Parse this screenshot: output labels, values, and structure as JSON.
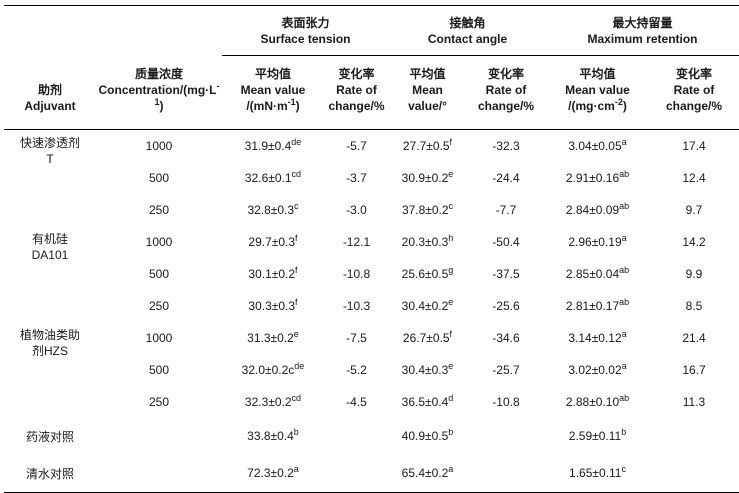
{
  "page": {
    "background_color": "#ffffff",
    "text_color": "#1a1a1a",
    "rule_color": "#000000"
  },
  "table": {
    "corner_headers": [
      {
        "id": "adjuvant",
        "lines": [
          [
            "助剂"
          ],
          [
            "Adjuvant"
          ]
        ]
      },
      {
        "id": "concentration",
        "lines": [
          [
            "质量浓度"
          ],
          [
            "Concentration/(mg·L",
            {
              "sup": "-1"
            },
            ")"
          ]
        ]
      }
    ],
    "group_headers": [
      {
        "id": "surface-tension",
        "lines": [
          [
            "表面张力"
          ],
          [
            "Surface tension"
          ]
        ]
      },
      {
        "id": "contact-angle",
        "lines": [
          [
            "接触角"
          ],
          [
            "Contact angle"
          ]
        ]
      },
      {
        "id": "max-retention",
        "lines": [
          [
            "最大持留量"
          ],
          [
            "Maximum retention"
          ]
        ]
      }
    ],
    "sub_headers": [
      {
        "id": "st-mean",
        "lines": [
          [
            "平均值"
          ],
          [
            "Mean value"
          ],
          [
            "/(mN·m",
            {
              "sup": "-1"
            },
            ")"
          ]
        ]
      },
      {
        "id": "st-rate",
        "lines": [
          [
            "变化率"
          ],
          [
            "Rate of"
          ],
          [
            "change/%"
          ]
        ]
      },
      {
        "id": "ca-mean",
        "lines": [
          [
            "平均值"
          ],
          [
            "Mean"
          ],
          [
            "value/°"
          ]
        ]
      },
      {
        "id": "ca-rate",
        "lines": [
          [
            "变化率"
          ],
          [
            "Rate of"
          ],
          [
            "change/%"
          ]
        ]
      },
      {
        "id": "ret-mean",
        "lines": [
          [
            "平均值"
          ],
          [
            "Mean value"
          ],
          [
            "/(mg·cm",
            {
              "sup": "-2"
            },
            ")"
          ]
        ]
      },
      {
        "id": "ret-rate",
        "lines": [
          [
            "变化率"
          ],
          [
            "Rate of"
          ],
          [
            "change/%"
          ]
        ]
      }
    ],
    "rows": [
      {
        "adjuvant": {
          "lines": [
            "快速渗透剂",
            "T"
          ],
          "rowspan": 3
        },
        "concentration": "1000",
        "values": [
          {
            "v": "31.9±0.4",
            "sup": "de"
          },
          {
            "v": "-5.7"
          },
          {
            "v": "27.7±0.5",
            "sup": "f"
          },
          {
            "v": "-32.3"
          },
          {
            "v": "3.04±0.05",
            "sup": "a"
          },
          {
            "v": "17.4"
          }
        ]
      },
      {
        "concentration": "500",
        "values": [
          {
            "v": "32.6±0.1",
            "sup": "cd"
          },
          {
            "v": "-3.7"
          },
          {
            "v": "30.9±0.2",
            "sup": "e"
          },
          {
            "v": "-24.4"
          },
          {
            "v": "2.91±0.16",
            "sup": "ab"
          },
          {
            "v": "12.4"
          }
        ]
      },
      {
        "concentration": "250",
        "values": [
          {
            "v": "32.8±0.3",
            "sup": "c"
          },
          {
            "v": "-3.0"
          },
          {
            "v": "37.8±0.2",
            "sup": "c"
          },
          {
            "v": "-7.7"
          },
          {
            "v": "2.84±0.09",
            "sup": "ab"
          },
          {
            "v": "9.7"
          }
        ]
      },
      {
        "adjuvant": {
          "lines": [
            "有机硅",
            "DA101"
          ],
          "rowspan": 3
        },
        "concentration": "1000",
        "values": [
          {
            "v": "29.7±0.3",
            "sup": "f"
          },
          {
            "v": "-12.1"
          },
          {
            "v": "20.3±0.3",
            "sup": "h"
          },
          {
            "v": "-50.4"
          },
          {
            "v": "2.96±0.19",
            "sup": "a"
          },
          {
            "v": "14.2"
          }
        ]
      },
      {
        "concentration": "500",
        "values": [
          {
            "v": "30.1±0.2",
            "sup": "f"
          },
          {
            "v": "-10.8"
          },
          {
            "v": "25.6±0.5",
            "sup": "g"
          },
          {
            "v": "-37.5"
          },
          {
            "v": "2.85±0.04",
            "sup": "ab"
          },
          {
            "v": "9.9"
          }
        ]
      },
      {
        "concentration": "250",
        "values": [
          {
            "v": "30.3±0.3",
            "sup": "f"
          },
          {
            "v": "-10.3"
          },
          {
            "v": "30.4±0.2",
            "sup": "e"
          },
          {
            "v": "-25.6"
          },
          {
            "v": "2.81±0.17",
            "sup": "ab"
          },
          {
            "v": "8.5"
          }
        ]
      },
      {
        "adjuvant": {
          "lines": [
            "植物油类助",
            "剂HZS"
          ],
          "rowspan": 3
        },
        "concentration": "1000",
        "values": [
          {
            "v": "31.3±0.2",
            "sup": "e"
          },
          {
            "v": "-7.5"
          },
          {
            "v": "26.7±0.5",
            "sup": "f"
          },
          {
            "v": "-34.6"
          },
          {
            "v": "3.14±0.12",
            "sup": "a"
          },
          {
            "v": "21.4"
          }
        ]
      },
      {
        "concentration": "500",
        "values": [
          {
            "v": "32.0±0.2c",
            "sup": "de"
          },
          {
            "v": "-5.2"
          },
          {
            "v": "30.4±0.3",
            "sup": "e"
          },
          {
            "v": "-25.7"
          },
          {
            "v": "3.02±0.02",
            "sup": "a"
          },
          {
            "v": "16.7"
          }
        ]
      },
      {
        "concentration": "250",
        "values": [
          {
            "v": "32.3±0.2",
            "sup": "cd"
          },
          {
            "v": "-4.5"
          },
          {
            "v": "36.5±0.4",
            "sup": "d"
          },
          {
            "v": "-10.8"
          },
          {
            "v": "2.88±0.10",
            "sup": "ab"
          },
          {
            "v": "11.3"
          }
        ]
      },
      {
        "adjuvant": {
          "lines": [
            "药液对照"
          ],
          "rowspan": 1
        },
        "concentration": "",
        "values": [
          {
            "v": "33.8±0.4",
            "sup": "b"
          },
          {
            "v": ""
          },
          {
            "v": "40.9±0.5",
            "sup": "b"
          },
          {
            "v": ""
          },
          {
            "v": "2.59±0.11",
            "sup": "b"
          },
          {
            "v": ""
          }
        ]
      },
      {
        "adjuvant": {
          "lines": [
            "清水对照"
          ],
          "rowspan": 1
        },
        "concentration": "",
        "values": [
          {
            "v": "72.3±0.2",
            "sup": "a"
          },
          {
            "v": ""
          },
          {
            "v": "65.4±0.2",
            "sup": "a"
          },
          {
            "v": ""
          },
          {
            "v": "1.65±0.11",
            "sup": "c"
          },
          {
            "v": ""
          }
        ]
      }
    ]
  }
}
